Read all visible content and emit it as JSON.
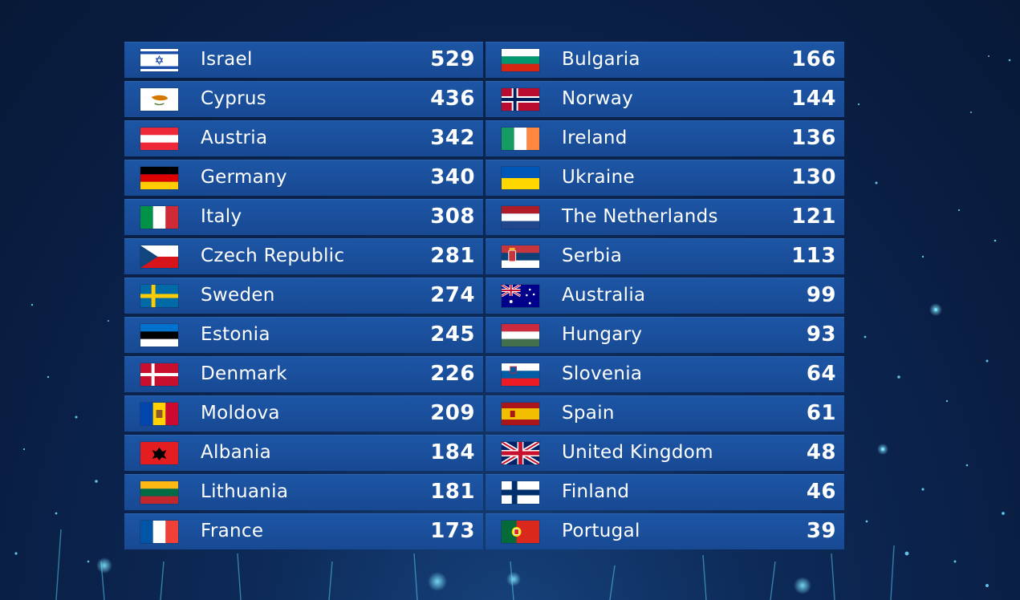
{
  "scoreboard": {
    "left": [
      {
        "country": "Israel",
        "points": "529",
        "flag": "israel-flag-icon"
      },
      {
        "country": "Cyprus",
        "points": "436",
        "flag": "cyprus-flag-icon"
      },
      {
        "country": "Austria",
        "points": "342",
        "flag": "austria-flag-icon"
      },
      {
        "country": "Germany",
        "points": "340",
        "flag": "germany-flag-icon"
      },
      {
        "country": "Italy",
        "points": "308",
        "flag": "italy-flag-icon"
      },
      {
        "country": "Czech Republic",
        "points": "281",
        "flag": "czech-republic-flag-icon"
      },
      {
        "country": "Sweden",
        "points": "274",
        "flag": "sweden-flag-icon"
      },
      {
        "country": "Estonia",
        "points": "245",
        "flag": "estonia-flag-icon"
      },
      {
        "country": "Denmark",
        "points": "226",
        "flag": "denmark-flag-icon"
      },
      {
        "country": "Moldova",
        "points": "209",
        "flag": "moldova-flag-icon"
      },
      {
        "country": "Albania",
        "points": "184",
        "flag": "albania-flag-icon"
      },
      {
        "country": "Lithuania",
        "points": "181",
        "flag": "lithuania-flag-icon"
      },
      {
        "country": "France",
        "points": "173",
        "flag": "france-flag-icon"
      }
    ],
    "right": [
      {
        "country": "Bulgaria",
        "points": "166",
        "flag": "bulgaria-flag-icon"
      },
      {
        "country": "Norway",
        "points": "144",
        "flag": "norway-flag-icon"
      },
      {
        "country": "Ireland",
        "points": "136",
        "flag": "ireland-flag-icon"
      },
      {
        "country": "Ukraine",
        "points": "130",
        "flag": "ukraine-flag-icon"
      },
      {
        "country": "The Netherlands",
        "points": "121",
        "flag": "netherlands-flag-icon"
      },
      {
        "country": "Serbia",
        "points": "113",
        "flag": "serbia-flag-icon"
      },
      {
        "country": "Australia",
        "points": "99",
        "flag": "australia-flag-icon"
      },
      {
        "country": "Hungary",
        "points": "93",
        "flag": "hungary-flag-icon"
      },
      {
        "country": "Slovenia",
        "points": "64",
        "flag": "slovenia-flag-icon"
      },
      {
        "country": "Spain",
        "points": "61",
        "flag": "spain-flag-icon"
      },
      {
        "country": "United Kingdom",
        "points": "48",
        "flag": "united-kingdom-flag-icon"
      },
      {
        "country": "Finland",
        "points": "46",
        "flag": "finland-flag-icon"
      },
      {
        "country": "Portugal",
        "points": "39",
        "flag": "portugal-flag-icon"
      }
    ]
  },
  "colors": {
    "row_background": "#1a4f9b",
    "page_background": "#0a1f45",
    "text": "#ffffff"
  }
}
